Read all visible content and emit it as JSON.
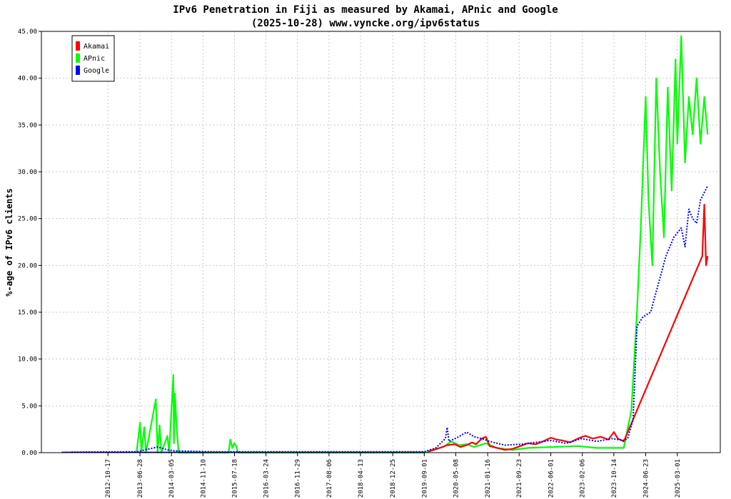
{
  "chart_data": {
    "type": "line",
    "title": "IPv6 Penetration in Fiji as measured by Akamai, APnic and Google",
    "subtitle": "(2025-10-28) www.vyncke.org/ipv6status",
    "ylabel": "%-age of IPv6 clients",
    "xlabel": "",
    "ylim": [
      0,
      45
    ],
    "y_ticks": [
      "0.00",
      "5.00",
      "10.00",
      "15.00",
      "20.00",
      "25.00",
      "30.00",
      "35.00",
      "40.00",
      "45.00"
    ],
    "x_range": [
      "2011-05-08",
      "2026-02-05"
    ],
    "x_ticks": [
      "2012-10-17",
      "2013-06-28",
      "2014-03-05",
      "2014-11-10",
      "2015-07-18",
      "2016-03-24",
      "2016-11-29",
      "2017-08-06",
      "2018-04-13",
      "2018-12-25",
      "2019-09-01",
      "2020-05-08",
      "2021-01-16",
      "2021-09-23",
      "2022-06-01",
      "2023-02-06",
      "2023-10-14",
      "2024-06-23",
      "2025-03-01"
    ],
    "grid": true,
    "legend_position": "top-left",
    "series": [
      {
        "name": "Akamai",
        "color": "#ff0000",
        "points": [
          [
            "2019-10-01",
            0.1
          ],
          [
            "2020-01-01",
            0.5
          ],
          [
            "2020-03-01",
            0.8
          ],
          [
            "2020-05-01",
            0.9
          ],
          [
            "2020-06-15",
            0.6
          ],
          [
            "2020-08-01",
            0.8
          ],
          [
            "2020-09-15",
            1.1
          ],
          [
            "2020-10-15",
            0.9
          ],
          [
            "2020-12-01",
            1.5
          ],
          [
            "2021-01-01",
            1.7
          ],
          [
            "2021-02-01",
            0.7
          ],
          [
            "2021-04-01",
            0.5
          ],
          [
            "2021-06-01",
            0.3
          ],
          [
            "2021-08-01",
            0.4
          ],
          [
            "2021-10-01",
            0.7
          ],
          [
            "2021-12-01",
            1.0
          ],
          [
            "2022-02-01",
            0.9
          ],
          [
            "2022-04-01",
            1.2
          ],
          [
            "2022-06-01",
            1.6
          ],
          [
            "2022-07-15",
            1.4
          ],
          [
            "2022-09-01",
            1.3
          ],
          [
            "2022-11-01",
            1.1
          ],
          [
            "2023-01-01",
            1.5
          ],
          [
            "2023-03-01",
            1.8
          ],
          [
            "2023-05-01",
            1.5
          ],
          [
            "2023-07-01",
            1.7
          ],
          [
            "2023-09-01",
            1.4
          ],
          [
            "2023-10-15",
            2.2
          ],
          [
            "2023-11-15",
            1.5
          ],
          [
            "2024-01-01",
            1.2
          ],
          [
            "2025-09-15",
            21.0
          ],
          [
            "2025-10-01",
            26.5
          ],
          [
            "2025-10-15",
            20.0
          ],
          [
            "2025-10-28",
            21.0
          ]
        ]
      },
      {
        "name": "APnic",
        "color": "#00ff00",
        "points": [
          [
            "2013-06-01",
            0.0
          ],
          [
            "2013-06-28",
            3.2
          ],
          [
            "2013-07-10",
            0.1
          ],
          [
            "2013-08-01",
            2.7
          ],
          [
            "2013-08-15",
            0.0
          ],
          [
            "2013-11-01",
            5.7
          ],
          [
            "2013-11-15",
            0.0
          ],
          [
            "2013-12-01",
            2.9
          ],
          [
            "2013-12-15",
            0.0
          ],
          [
            "2014-02-01",
            1.8
          ],
          [
            "2014-02-15",
            0.0
          ],
          [
            "2014-03-20",
            8.3
          ],
          [
            "2014-03-25",
            1.0
          ],
          [
            "2014-04-01",
            6.3
          ],
          [
            "2014-04-15",
            2.7
          ],
          [
            "2014-05-01",
            0.0
          ],
          [
            "2015-06-01",
            0.0
          ],
          [
            "2015-06-15",
            1.4
          ],
          [
            "2015-07-01",
            0.5
          ],
          [
            "2015-07-15",
            1.0
          ],
          [
            "2015-08-01",
            0.7
          ],
          [
            "2015-08-15",
            0.0
          ],
          [
            "2019-09-01",
            0.0
          ],
          [
            "2019-12-01",
            0.4
          ],
          [
            "2020-02-01",
            0.6
          ],
          [
            "2020-04-01",
            1.2
          ],
          [
            "2020-06-01",
            0.8
          ],
          [
            "2020-08-01",
            0.9
          ],
          [
            "2020-10-01",
            0.6
          ],
          [
            "2021-01-01",
            1.0
          ],
          [
            "2021-04-01",
            0.5
          ],
          [
            "2021-08-01",
            0.3
          ],
          [
            "2021-12-01",
            0.5
          ],
          [
            "2022-06-01",
            0.6
          ],
          [
            "2023-01-01",
            0.7
          ],
          [
            "2023-06-01",
            0.5
          ],
          [
            "2024-01-01",
            0.5
          ],
          [
            "2024-03-01",
            4.5
          ],
          [
            "2024-04-15",
            15.0
          ],
          [
            "2024-05-15",
            24.0
          ],
          [
            "2024-06-23",
            38.0
          ],
          [
            "2024-07-15",
            27.0
          ],
          [
            "2024-08-15",
            20.0
          ],
          [
            "2024-09-15",
            40.0
          ],
          [
            "2024-10-15",
            30.0
          ],
          [
            "2024-11-15",
            23.0
          ],
          [
            "2024-12-15",
            39.0
          ],
          [
            "2025-01-15",
            28.0
          ],
          [
            "2025-02-15",
            42.0
          ],
          [
            "2025-03-01",
            33.0
          ],
          [
            "2025-04-01",
            44.5
          ],
          [
            "2025-05-01",
            31.0
          ],
          [
            "2025-06-01",
            38.0
          ],
          [
            "2025-07-01",
            34.0
          ],
          [
            "2025-08-01",
            40.0
          ],
          [
            "2025-09-01",
            33.0
          ],
          [
            "2025-10-01",
            38.0
          ],
          [
            "2025-10-28",
            34.0
          ]
        ]
      },
      {
        "name": "Google",
        "color": "#0000ff",
        "points": [
          [
            "2012-01-01",
            0.05
          ],
          [
            "2013-06-01",
            0.1
          ],
          [
            "2013-11-15",
            0.6
          ],
          [
            "2014-02-01",
            0.3
          ],
          [
            "2014-04-01",
            0.2
          ],
          [
            "2015-01-01",
            0.1
          ],
          [
            "2016-01-01",
            0.1
          ],
          [
            "2018-01-01",
            0.1
          ],
          [
            "2019-09-01",
            0.1
          ],
          [
            "2019-12-01",
            0.5
          ],
          [
            "2020-02-15",
            1.5
          ],
          [
            "2020-03-01",
            2.7
          ],
          [
            "2020-03-15",
            1.2
          ],
          [
            "2020-06-01",
            1.7
          ],
          [
            "2020-08-01",
            2.2
          ],
          [
            "2020-10-01",
            1.7
          ],
          [
            "2020-12-01",
            1.5
          ],
          [
            "2021-02-01",
            1.2
          ],
          [
            "2021-06-01",
            0.8
          ],
          [
            "2021-10-01",
            0.9
          ],
          [
            "2022-02-01",
            1.1
          ],
          [
            "2022-06-01",
            1.3
          ],
          [
            "2022-10-01",
            1.0
          ],
          [
            "2023-02-01",
            1.5
          ],
          [
            "2023-06-01",
            1.2
          ],
          [
            "2023-10-01",
            1.5
          ],
          [
            "2024-01-01",
            1.3
          ],
          [
            "2024-02-01",
            1.5
          ],
          [
            "2024-03-15",
            3.5
          ],
          [
            "2024-04-15",
            13.5
          ],
          [
            "2024-06-01",
            14.5
          ],
          [
            "2024-08-01",
            15.0
          ],
          [
            "2024-10-01",
            18.0
          ],
          [
            "2024-12-01",
            21.0
          ],
          [
            "2025-02-01",
            23.0
          ],
          [
            "2025-04-01",
            24.0
          ],
          [
            "2025-05-01",
            22.0
          ],
          [
            "2025-06-01",
            26.0
          ],
          [
            "2025-07-01",
            25.0
          ],
          [
            "2025-08-01",
            24.5
          ],
          [
            "2025-09-01",
            27.0
          ],
          [
            "2025-10-28",
            28.5
          ]
        ]
      }
    ]
  }
}
